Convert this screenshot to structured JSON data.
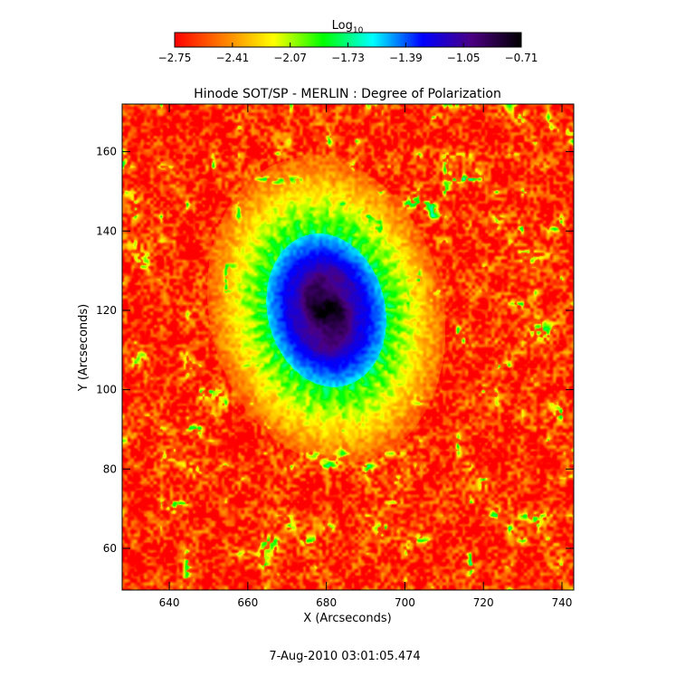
{
  "chart_data": {
    "type": "heatmap",
    "title": "Hinode SOT/SP - MERLIN : Degree of Polarization",
    "xlabel": "X (Arcseconds)",
    "ylabel": "Y (Arcseconds)",
    "footer": "7-Aug-2010 03:01:05.474",
    "xlim": [
      628,
      743
    ],
    "ylim": [
      49.5,
      172
    ],
    "x_ticks": [
      640,
      660,
      680,
      700,
      720,
      740
    ],
    "y_ticks": [
      60,
      80,
      100,
      120,
      140,
      160
    ],
    "colorbar": {
      "label_base": "Log",
      "label_sub": "10",
      "range": [
        -2.75,
        -0.71
      ],
      "ticks": [
        -2.75,
        -2.41,
        -2.07,
        -1.73,
        -1.39,
        -1.05,
        -0.71
      ],
      "tick_labels": [
        "−2.75",
        "−2.41",
        "−2.07",
        "−1.73",
        "−1.39",
        "−1.05",
        "−0.71"
      ],
      "colors": [
        "#ff0000",
        "#ff7f00",
        "#ffff00",
        "#00ff00",
        "#00ffff",
        "#0000ff",
        "#4b0082",
        "#000000"
      ]
    },
    "features": {
      "umbra_center": [
        680,
        120
      ],
      "umbra_value": -0.8,
      "umbra_radius_x": 13,
      "umbra_radius_y": 17,
      "penumbra_radius_x": 22,
      "penumbra_radius_y": 29,
      "quiet_sun_value": -2.62
    }
  }
}
